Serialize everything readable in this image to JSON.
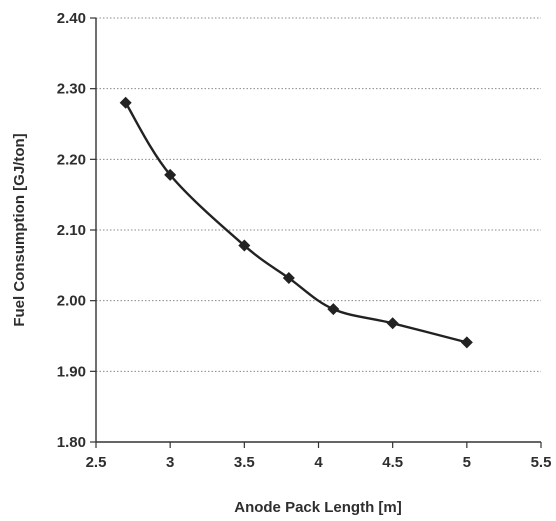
{
  "chart_data": {
    "type": "line",
    "title": "",
    "xlabel": "Anode Pack Length [m]",
    "ylabel": "Fuel Consumption [GJ/ton]",
    "xlim": [
      2.5,
      5.5
    ],
    "ylim": [
      1.8,
      2.4
    ],
    "x_ticks": [
      "2.5",
      "3",
      "3.5",
      "4",
      "4.5",
      "5",
      "5.5"
    ],
    "y_ticks": [
      "2.40",
      "2.30",
      "2.20",
      "2.10",
      "2.00",
      "1.90",
      "1.80"
    ],
    "grid": "horizontal dotted",
    "legend": "none",
    "marker": "diamond",
    "smooth": true,
    "line_color": "#222222",
    "series": [
      {
        "x": [
          2.7,
          3.0,
          3.5,
          3.8,
          4.1,
          4.5,
          5.0
        ],
        "y": [
          2.28,
          2.178,
          2.078,
          2.032,
          1.988,
          1.968,
          1.941
        ]
      }
    ]
  }
}
